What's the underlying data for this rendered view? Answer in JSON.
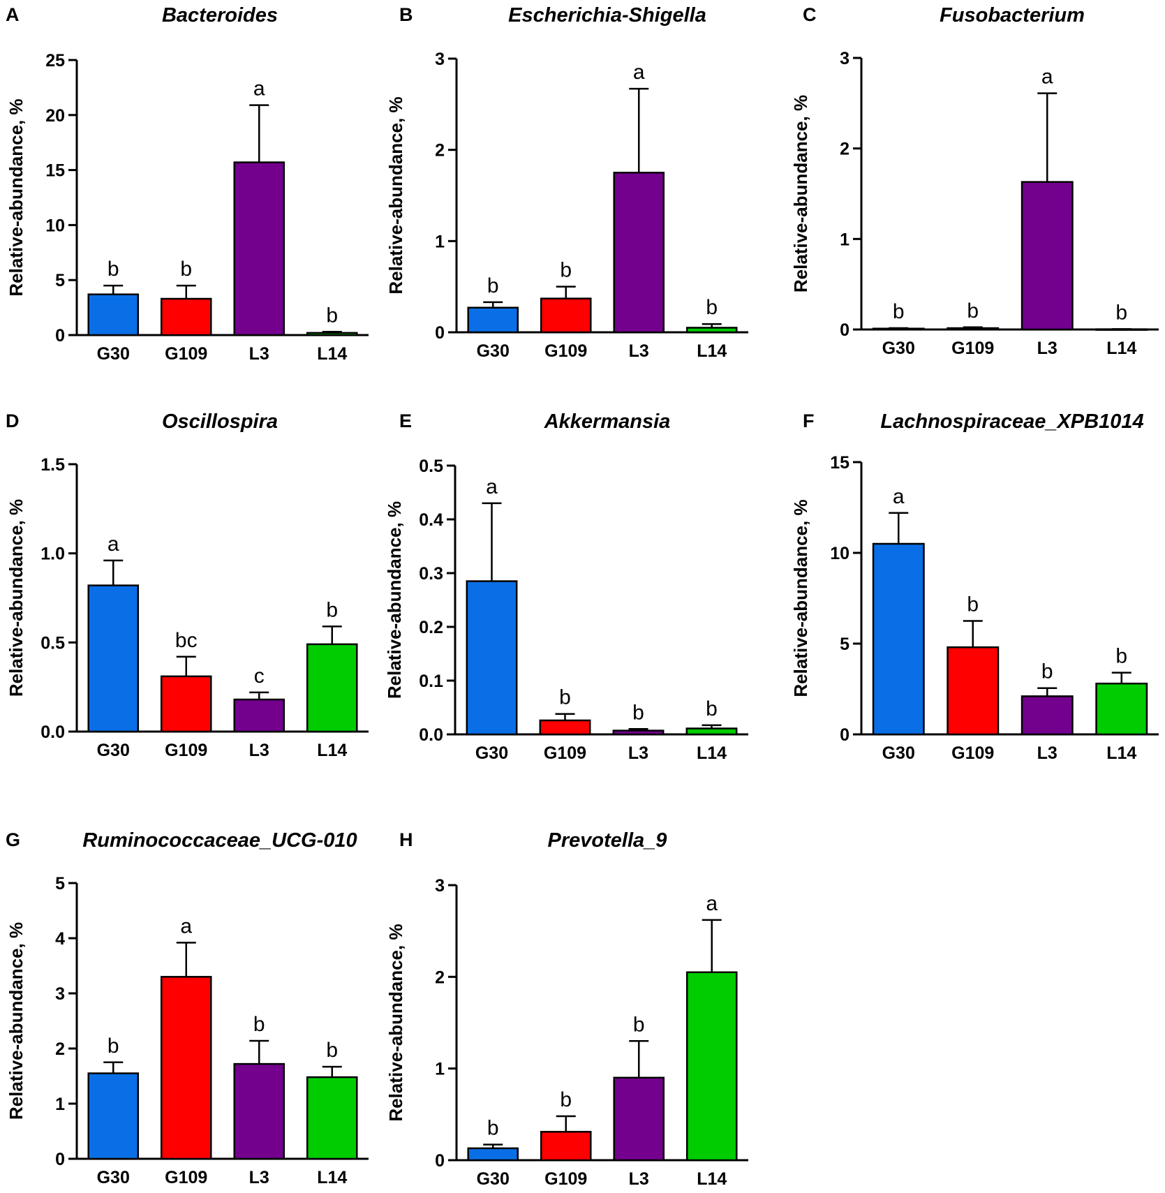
{
  "figure": {
    "categories": [
      "G30",
      "G109",
      "L3",
      "L14"
    ],
    "colors": [
      "#0a6fe6",
      "#ff0000",
      "#74008e",
      "#00cc00"
    ],
    "ylabel": "Relative-abundance, %"
  },
  "chart_data": [
    {
      "type": "bar",
      "panel": "A",
      "title": "Bacteroides",
      "categories": [
        "G30",
        "G109",
        "L3",
        "L14"
      ],
      "values": [
        3.7,
        3.3,
        15.7,
        0.2
      ],
      "errors": [
        0.8,
        1.2,
        5.2,
        0.1
      ],
      "significance": [
        "b",
        "b",
        "a",
        "b"
      ],
      "ylabel": "Relative-abundance, %",
      "ylim": [
        0,
        25
      ],
      "yticks": [
        "0",
        "5",
        "10",
        "15",
        "20",
        "25"
      ]
    },
    {
      "type": "bar",
      "panel": "B",
      "title": "Escherichia-Shigella",
      "categories": [
        "G30",
        "G109",
        "L3",
        "L14"
      ],
      "values": [
        0.27,
        0.37,
        1.75,
        0.05
      ],
      "errors": [
        0.06,
        0.13,
        0.92,
        0.04
      ],
      "significance": [
        "b",
        "b",
        "a",
        "b"
      ],
      "ylabel": "Relative-abundance, %",
      "ylim": [
        0,
        3
      ],
      "yticks": [
        "0",
        "1",
        "2",
        "3"
      ]
    },
    {
      "type": "bar",
      "panel": "C",
      "title": "Fusobacterium",
      "categories": [
        "G30",
        "G109",
        "L3",
        "L14"
      ],
      "values": [
        0.01,
        0.015,
        1.63,
        0.003
      ],
      "errors": [
        0.005,
        0.01,
        0.98,
        0.002
      ],
      "significance": [
        "b",
        "b",
        "a",
        "b"
      ],
      "ylabel": "Relative-abundance, %",
      "ylim": [
        0,
        3
      ],
      "yticks": [
        "0",
        "1",
        "2",
        "3"
      ]
    },
    {
      "type": "bar",
      "panel": "D",
      "title": "Oscillospira",
      "categories": [
        "G30",
        "G109",
        "L3",
        "L14"
      ],
      "values": [
        0.82,
        0.31,
        0.18,
        0.49
      ],
      "errors": [
        0.14,
        0.11,
        0.04,
        0.1
      ],
      "significance": [
        "a",
        "bc",
        "c",
        "b"
      ],
      "ylabel": "Relative-abundance, %",
      "ylim": [
        0,
        1.5
      ],
      "yticks": [
        "0.0",
        "0.5",
        "1.0",
        "1.5"
      ]
    },
    {
      "type": "bar",
      "panel": "E",
      "title": "Akkermansia",
      "categories": [
        "G30",
        "G109",
        "L3",
        "L14"
      ],
      "values": [
        0.285,
        0.026,
        0.007,
        0.011
      ],
      "errors": [
        0.145,
        0.012,
        0.003,
        0.006
      ],
      "significance": [
        "a",
        "b",
        "b",
        "b"
      ],
      "ylabel": "Relative-abundance, %",
      "ylim": [
        0,
        0.5
      ],
      "yticks": [
        "0.0",
        "0.1",
        "0.2",
        "0.3",
        "0.4",
        "0.5"
      ]
    },
    {
      "type": "bar",
      "panel": "F",
      "title": "Lachnospiraceae_XPB1014",
      "categories": [
        "G30",
        "G109",
        "L3",
        "L14"
      ],
      "values": [
        10.5,
        4.8,
        2.1,
        2.8
      ],
      "errors": [
        1.7,
        1.45,
        0.45,
        0.6
      ],
      "significance": [
        "a",
        "b",
        "b",
        "b"
      ],
      "ylabel": "Relative-abundance, %",
      "ylim": [
        0,
        15
      ],
      "yticks": [
        "0",
        "5",
        "10",
        "15"
      ]
    },
    {
      "type": "bar",
      "panel": "G",
      "title": "Ruminococcaceae_UCG-010",
      "categories": [
        "G30",
        "G109",
        "L3",
        "L14"
      ],
      "values": [
        1.55,
        3.3,
        1.72,
        1.48
      ],
      "errors": [
        0.2,
        0.62,
        0.42,
        0.19
      ],
      "significance": [
        "b",
        "a",
        "b",
        "b"
      ],
      "ylabel": "Relative-abundance, %",
      "ylim": [
        0,
        5
      ],
      "yticks": [
        "0",
        "1",
        "2",
        "3",
        "4",
        "5"
      ]
    },
    {
      "type": "bar",
      "panel": "H",
      "title": "Prevotella_9",
      "categories": [
        "G30",
        "G109",
        "L3",
        "L14"
      ],
      "values": [
        0.13,
        0.31,
        0.9,
        2.05
      ],
      "errors": [
        0.04,
        0.17,
        0.4,
        0.57
      ],
      "significance": [
        "b",
        "b",
        "b",
        "a"
      ],
      "ylabel": "Relative-abundance, %",
      "ylim": [
        0,
        3
      ],
      "yticks": [
        "0",
        "1",
        "2",
        "3"
      ]
    }
  ]
}
